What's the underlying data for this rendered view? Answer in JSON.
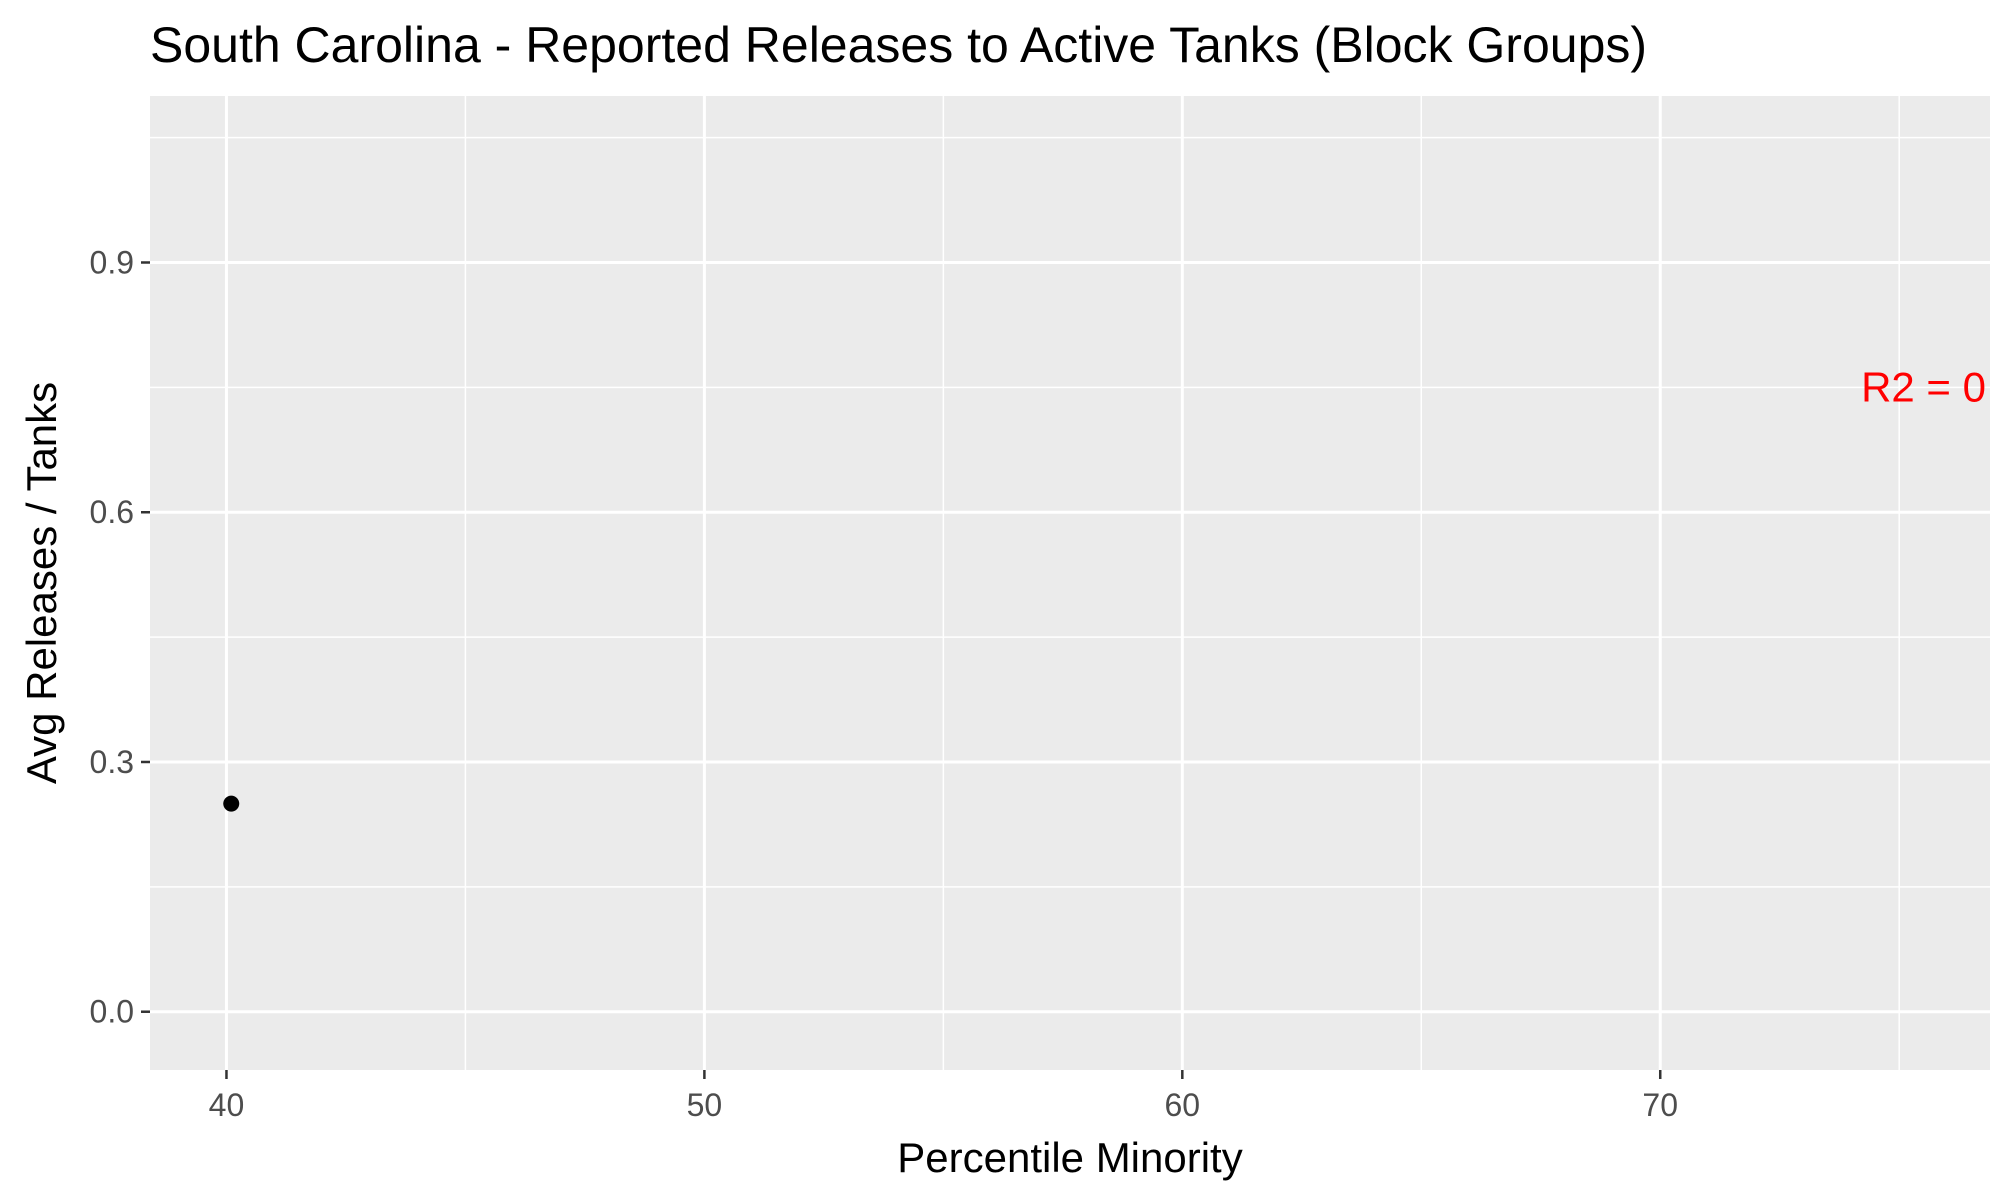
{
  "chart_data": {
    "type": "scatter",
    "title": "South Carolina - Reported Releases to Active Tanks (Block Groups)",
    "xlabel": "Percentile Minority",
    "ylabel": "Avg Releases / Tanks",
    "xlim": [
      38.4,
      76.9
    ],
    "ylim": [
      -0.07,
      1.1
    ],
    "x_ticks": [
      40,
      50,
      60,
      70
    ],
    "x_tick_labels": [
      "40",
      "50",
      "60",
      "70"
    ],
    "x_minor_ticks": [
      45,
      55,
      65,
      75
    ],
    "y_ticks": [
      0.0,
      0.3,
      0.6,
      0.9
    ],
    "y_tick_labels": [
      "0.0",
      "0.3",
      "0.6",
      "0.9"
    ],
    "y_minor_ticks": [
      0.15,
      0.45,
      0.75,
      1.05
    ],
    "points": [
      {
        "x": 40.1,
        "y": 0.25
      }
    ],
    "point_color": "#000000",
    "panel_background": "#ebebeb",
    "grid_color": "#ffffff",
    "grid": true,
    "legend": "none",
    "annotation": {
      "text": "R2 =  0",
      "x": 76.9,
      "y": 0.75,
      "color": "#ff0000"
    }
  }
}
